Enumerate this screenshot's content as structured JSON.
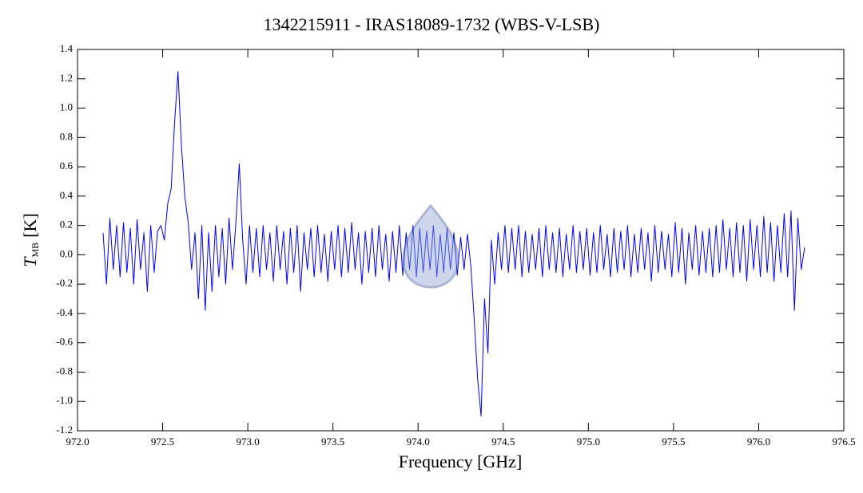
{
  "chart_data": {
    "type": "line",
    "title": "1342215911 - IRAS18089-1732 (WBS-V-LSB)",
    "xlabel": "Frequency [GHz]",
    "ylabel": "T",
    "ylabel_sub": "MB",
    "ylabel_unit": "[K]",
    "xlim": [
      972.0,
      976.5
    ],
    "xticks": [
      {
        "value": 972.0,
        "label": "972.0"
      },
      972.5,
      {
        "value": 973.0,
        "label": "973.0"
      },
      973.5,
      {
        "value": 974.0,
        "label": "974.0"
      },
      974.5,
      {
        "value": 975.0,
        "label": "975.0"
      },
      975.5,
      {
        "value": 976.0,
        "label": "976.0"
      },
      976.5
    ],
    "ylim": [
      -1.2,
      1.4
    ],
    "yticks": [
      -1.2,
      {
        "value": -1.0,
        "label": "-1.0"
      },
      -0.8,
      -0.6,
      -0.4,
      -0.2,
      {
        "value": 0.0,
        "label": "0.0"
      },
      0.2,
      0.4,
      0.6,
      0.8,
      {
        "value": 1.0,
        "label": "1.0"
      },
      1.2,
      1.4
    ],
    "series": [
      {
        "color": "#0000ff",
        "x": [
          972.15,
          972.17,
          972.19,
          972.21,
          972.23,
          972.25,
          972.27,
          972.29,
          972.31,
          972.33,
          972.35,
          972.37,
          972.39,
          972.41,
          972.43,
          972.45,
          972.47,
          972.49,
          972.51,
          972.53,
          972.55,
          972.57,
          972.59,
          972.61,
          972.63,
          972.65,
          972.67,
          972.69,
          972.71,
          972.73,
          972.75,
          972.77,
          972.79,
          972.81,
          972.83,
          972.85,
          972.87,
          972.89,
          972.91,
          972.93,
          972.95,
          972.97,
          972.99,
          973.01,
          973.03,
          973.05,
          973.07,
          973.09,
          973.11,
          973.13,
          973.15,
          973.17,
          973.19,
          973.21,
          973.23,
          973.25,
          973.27,
          973.29,
          973.31,
          973.33,
          973.35,
          973.37,
          973.39,
          973.41,
          973.43,
          973.45,
          973.47,
          973.49,
          973.51,
          973.53,
          973.55,
          973.57,
          973.59,
          973.61,
          973.63,
          973.65,
          973.67,
          973.69,
          973.71,
          973.73,
          973.75,
          973.77,
          973.79,
          973.81,
          973.83,
          973.85,
          973.87,
          973.89,
          973.91,
          973.93,
          973.95,
          973.97,
          973.99,
          974.01,
          974.03,
          974.05,
          974.07,
          974.09,
          974.11,
          974.13,
          974.15,
          974.17,
          974.19,
          974.21,
          974.23,
          974.25,
          974.27,
          974.29,
          974.31,
          974.33,
          974.35,
          974.37,
          974.39,
          974.41,
          974.43,
          974.45,
          974.47,
          974.49,
          974.51,
          974.53,
          974.55,
          974.57,
          974.59,
          974.61,
          974.63,
          974.65,
          974.67,
          974.69,
          974.71,
          974.73,
          974.75,
          974.77,
          974.79,
          974.81,
          974.83,
          974.85,
          974.87,
          974.89,
          974.91,
          974.93,
          974.95,
          974.97,
          974.99,
          975.01,
          975.03,
          975.05,
          975.07,
          975.09,
          975.11,
          975.13,
          975.15,
          975.17,
          975.19,
          975.21,
          975.23,
          975.25,
          975.27,
          975.29,
          975.31,
          975.33,
          975.35,
          975.37,
          975.39,
          975.41,
          975.43,
          975.45,
          975.47,
          975.49,
          975.51,
          975.53,
          975.55,
          975.57,
          975.59,
          975.61,
          975.63,
          975.65,
          975.67,
          975.69,
          975.71,
          975.73,
          975.75,
          975.77,
          975.79,
          975.81,
          975.83,
          975.85,
          975.87,
          975.89,
          975.91,
          975.93,
          975.95,
          975.97,
          975.99,
          976.01,
          976.03,
          976.05,
          976.07,
          976.09,
          976.11,
          976.13,
          976.15,
          976.17,
          976.19,
          976.21,
          976.23,
          976.25,
          976.27
        ],
        "values": [
          0.15,
          -0.2,
          0.25,
          -0.1,
          0.2,
          -0.15,
          0.22,
          -0.12,
          0.18,
          -0.2,
          0.24,
          -0.1,
          0.15,
          -0.25,
          0.2,
          -0.12,
          0.16,
          0.2,
          0.1,
          0.35,
          0.45,
          0.9,
          1.25,
          0.75,
          0.4,
          0.22,
          -0.1,
          0.15,
          -0.3,
          0.2,
          -0.38,
          0.15,
          -0.25,
          0.2,
          -0.15,
          0.18,
          -0.2,
          0.25,
          -0.1,
          0.22,
          0.62,
          0.1,
          -0.2,
          0.2,
          -0.12,
          0.18,
          -0.15,
          0.2,
          -0.1,
          0.15,
          -0.18,
          0.2,
          -0.1,
          0.16,
          -0.2,
          0.18,
          -0.12,
          0.2,
          -0.25,
          0.15,
          -0.1,
          0.18,
          -0.15,
          0.2,
          -0.12,
          0.14,
          -0.18,
          0.16,
          -0.1,
          0.2,
          -0.15,
          0.18,
          -0.12,
          0.22,
          -0.1,
          0.15,
          -0.2,
          0.16,
          -0.12,
          0.18,
          -0.15,
          0.2,
          -0.1,
          0.14,
          -0.18,
          0.16,
          -0.12,
          0.2,
          -0.14,
          0.15,
          -0.1,
          0.2,
          -0.15,
          0.18,
          -0.12,
          0.16,
          -0.1,
          0.2,
          -0.15,
          0.14,
          -0.12,
          0.18,
          -0.1,
          0.15,
          -0.14,
          0.12,
          -0.1,
          0.14,
          -0.08,
          -0.45,
          -0.85,
          -1.1,
          -0.3,
          -0.67,
          0.1,
          -0.2,
          0.15,
          -0.1,
          0.2,
          -0.12,
          0.18,
          -0.1,
          0.2,
          -0.15,
          0.16,
          -0.12,
          0.14,
          -0.1,
          0.18,
          -0.15,
          0.2,
          -0.1,
          0.15,
          -0.12,
          0.18,
          -0.15,
          0.14,
          -0.1,
          0.2,
          -0.12,
          0.16,
          -0.1,
          0.18,
          -0.14,
          0.15,
          -0.12,
          0.2,
          -0.1,
          0.14,
          -0.15,
          0.18,
          -0.12,
          0.16,
          -0.1,
          0.2,
          -0.15,
          0.14,
          -0.12,
          0.18,
          -0.1,
          0.15,
          -0.18,
          0.2,
          -0.12,
          0.16,
          -0.1,
          0.14,
          -0.15,
          0.22,
          -0.12,
          0.18,
          -0.2,
          0.15,
          -0.1,
          0.2,
          -0.14,
          0.16,
          -0.12,
          0.18,
          -0.15,
          0.2,
          -0.12,
          0.24,
          -0.1,
          0.18,
          -0.15,
          0.22,
          -0.12,
          0.2,
          -0.18,
          0.24,
          -0.1,
          0.2,
          -0.15,
          0.26,
          -0.12,
          0.22,
          -0.18,
          0.2,
          -0.12,
          0.28,
          -0.15,
          0.3,
          -0.38,
          0.25,
          -0.1,
          0.05
        ]
      }
    ]
  }
}
